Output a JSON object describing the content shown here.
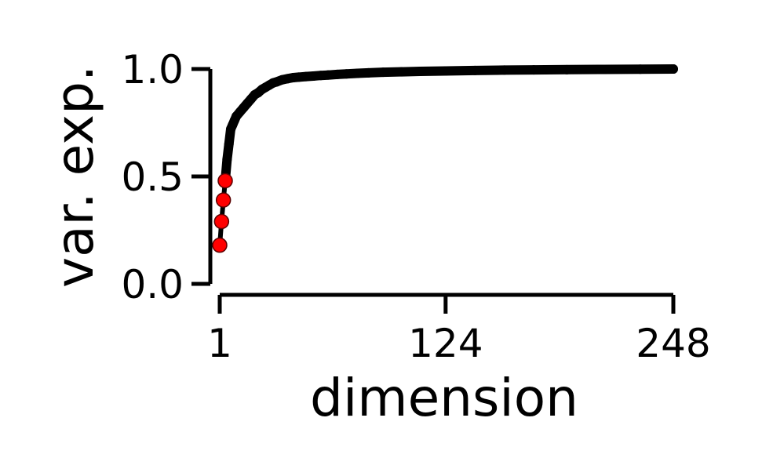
{
  "chart_data": {
    "type": "scatter",
    "xlabel": "dimension",
    "ylabel": "var. exp.",
    "xlim": [
      1,
      248
    ],
    "ylim": [
      0,
      1
    ],
    "xticks": [
      1,
      124,
      248
    ],
    "xtick_labels": [
      "1",
      "124",
      "248"
    ],
    "yticks": [
      0,
      0.5,
      1
    ],
    "ytick_labels": [
      "0.0",
      "0.5",
      "1.0"
    ],
    "grid": false,
    "series": [
      {
        "color": "#000000",
        "x": [
          5,
          6,
          7,
          8,
          9,
          10,
          12,
          14,
          16,
          18,
          20,
          22,
          24,
          26,
          28,
          30,
          32,
          35,
          38,
          41,
          44,
          48,
          52,
          56,
          60,
          65,
          70,
          76,
          82,
          90,
          100,
          110,
          124,
          140,
          156,
          172,
          190,
          210,
          230,
          248
        ],
        "y": [
          0.58,
          0.65,
          0.72,
          0.74,
          0.76,
          0.78,
          0.8,
          0.82,
          0.84,
          0.86,
          0.88,
          0.89,
          0.905,
          0.915,
          0.925,
          0.935,
          0.94,
          0.95,
          0.955,
          0.96,
          0.962,
          0.965,
          0.967,
          0.97,
          0.972,
          0.975,
          0.977,
          0.98,
          0.982,
          0.985,
          0.987,
          0.989,
          0.991,
          0.993,
          0.995,
          0.996,
          0.997,
          0.998,
          0.999,
          1.0
        ]
      },
      {
        "color": "#ff0000",
        "x": [
          1,
          2,
          3,
          4
        ],
        "y": [
          0.18,
          0.29,
          0.39,
          0.48
        ]
      }
    ]
  }
}
